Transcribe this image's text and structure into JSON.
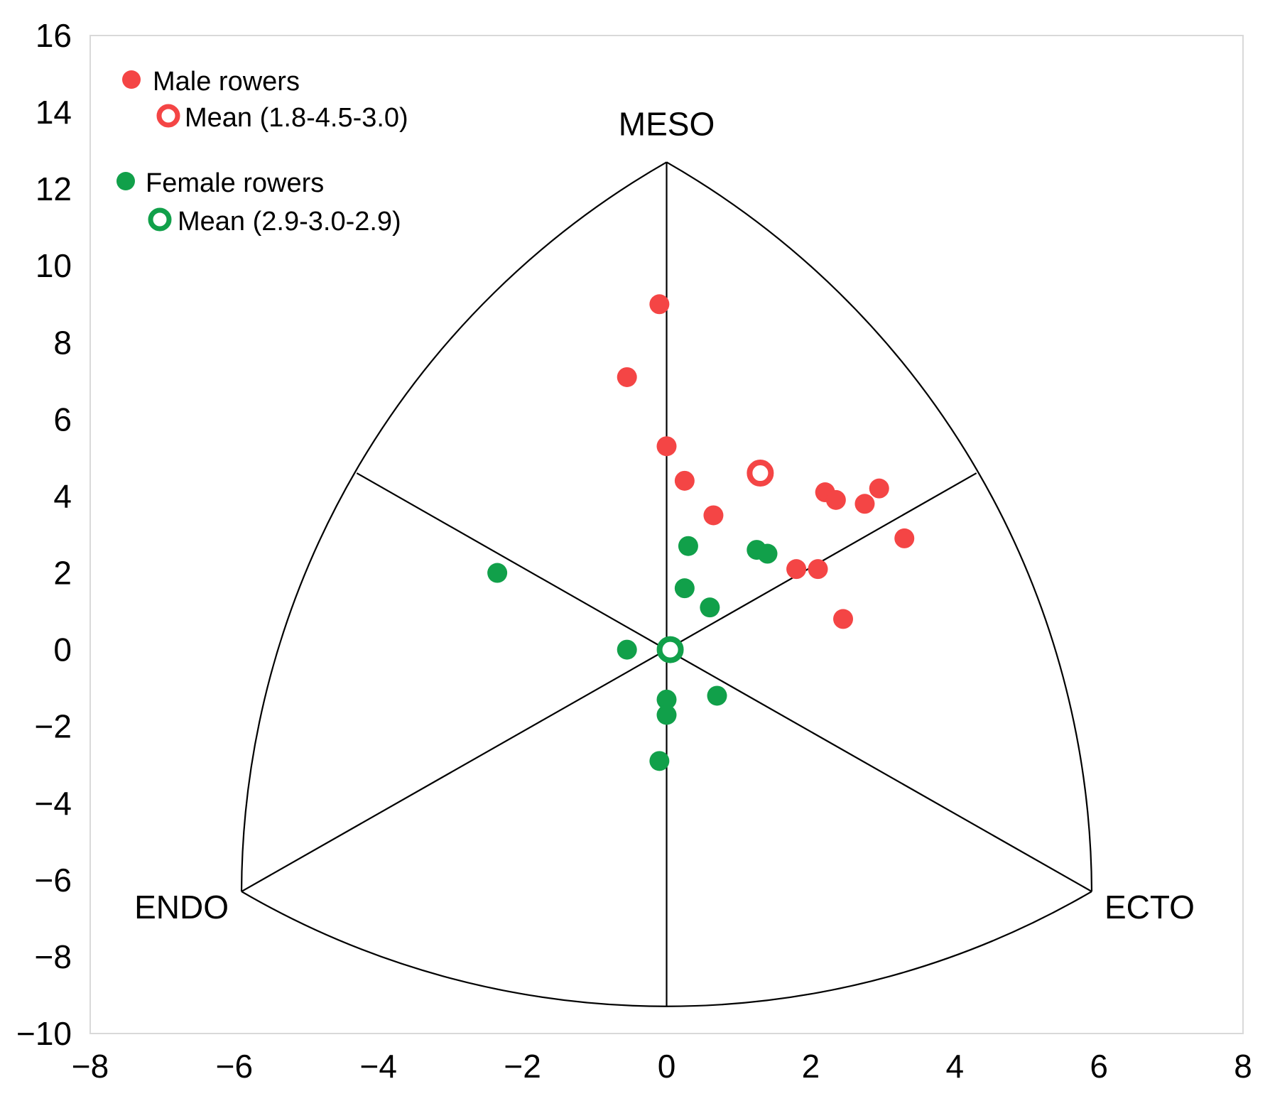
{
  "chart_data": {
    "type": "scatter",
    "title": "",
    "xlabel": "",
    "ylabel": "",
    "xlim": [
      -8,
      8
    ],
    "ylim": [
      -10,
      16
    ],
    "x_ticks": [
      "−8",
      "−6",
      "−4",
      "−2",
      "0",
      "2",
      "4",
      "6",
      "8"
    ],
    "y_ticks": [
      "16",
      "14",
      "12",
      "10",
      "8",
      "6",
      "4",
      "2",
      "0",
      "−2",
      "−4",
      "−6",
      "−8",
      "−10"
    ],
    "grid": false,
    "legend_position": "top-left",
    "somatochart": {
      "vertices": [
        {
          "label": "MESO",
          "x": 0,
          "y": 12.7
        },
        {
          "label": "ENDO",
          "x": -5.9,
          "y": -6.3
        },
        {
          "label": "ECTO",
          "x": 5.9,
          "y": -6.3
        }
      ],
      "axis_ends": [
        {
          "x": 0,
          "y": -9.3
        },
        {
          "x": -4.3,
          "y": 4.6
        },
        {
          "x": 4.3,
          "y": 4.6
        }
      ]
    },
    "series": [
      {
        "name": "Male rowers",
        "color": "#f44545",
        "marker": "filled",
        "points": [
          {
            "x": -0.1,
            "y": 9.0
          },
          {
            "x": -0.55,
            "y": 7.1
          },
          {
            "x": 0.0,
            "y": 5.3
          },
          {
            "x": 0.25,
            "y": 4.4
          },
          {
            "x": 0.65,
            "y": 3.5
          },
          {
            "x": 2.2,
            "y": 4.1
          },
          {
            "x": 2.35,
            "y": 3.9
          },
          {
            "x": 2.75,
            "y": 3.8
          },
          {
            "x": 2.95,
            "y": 4.2
          },
          {
            "x": 3.3,
            "y": 2.9
          },
          {
            "x": 1.8,
            "y": 2.1
          },
          {
            "x": 2.1,
            "y": 2.1
          },
          {
            "x": 2.45,
            "y": 0.8
          }
        ]
      },
      {
        "name": "Mean (1.8-4.5-3.0)",
        "color": "#f44545",
        "marker": "hollow",
        "points": [
          {
            "x": 1.3,
            "y": 4.6
          }
        ]
      },
      {
        "name": "Female rowers",
        "color": "#11a04a",
        "marker": "filled",
        "points": [
          {
            "x": -2.35,
            "y": 2.0
          },
          {
            "x": 0.3,
            "y": 2.7
          },
          {
            "x": 1.25,
            "y": 2.6
          },
          {
            "x": 1.4,
            "y": 2.5
          },
          {
            "x": 0.25,
            "y": 1.6
          },
          {
            "x": 0.6,
            "y": 1.1
          },
          {
            "x": -0.55,
            "y": 0.0
          },
          {
            "x": 0.0,
            "y": -1.3
          },
          {
            "x": 0.0,
            "y": -1.7
          },
          {
            "x": 0.7,
            "y": -1.2
          },
          {
            "x": -0.1,
            "y": -2.9
          }
        ]
      },
      {
        "name": "Mean (2.9-3.0-2.9)",
        "color": "#11a04a",
        "marker": "hollow",
        "points": [
          {
            "x": 0.05,
            "y": 0.0
          }
        ]
      }
    ]
  }
}
